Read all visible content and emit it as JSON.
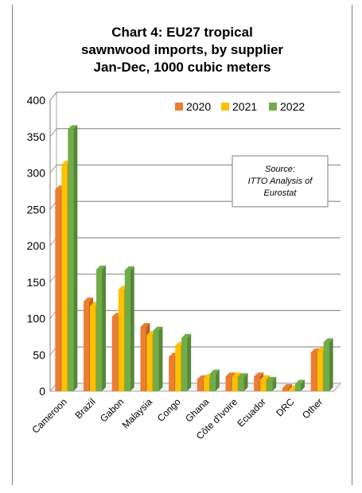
{
  "chart_data": {
    "type": "bar",
    "title_lines": [
      "Chart 4: EU27 tropical",
      "sawnwood imports, by supplier",
      "Jan-Dec, 1000 cubic meters"
    ],
    "categories": [
      "Cameroon",
      "Brazil",
      "Gabon",
      "Malaysia",
      "Congo",
      "Ghana",
      "Côte d'Ivoire",
      "Ecuador",
      "DRC",
      "Other"
    ],
    "series": [
      {
        "name": "2020",
        "color": "#ed7d31",
        "values": [
          277,
          123,
          102,
          88,
          47,
          16,
          20,
          20,
          4,
          53
        ]
      },
      {
        "name": "2021",
        "color": "#ffc000",
        "values": [
          311,
          117,
          139,
          77,
          62,
          18,
          20,
          16,
          2,
          55
        ]
      },
      {
        "name": "2022",
        "color": "#70ad47",
        "values": [
          360,
          167,
          166,
          83,
          73,
          24,
          19,
          14,
          10,
          67
        ]
      }
    ],
    "yticks": [
      0,
      50,
      100,
      150,
      200,
      250,
      300,
      350,
      400
    ],
    "ylim": [
      0,
      400
    ],
    "grid": true,
    "legend_position": "top-right",
    "source_lines": [
      "Source:",
      "ITTO Analysis of",
      "Eurostat"
    ]
  }
}
